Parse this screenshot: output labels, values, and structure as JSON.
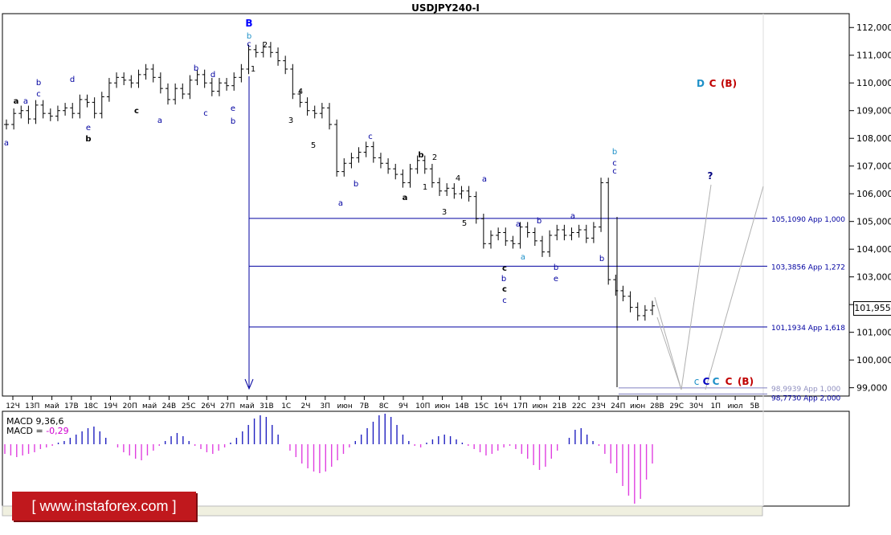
{
  "title": "USDJPY240-I",
  "chart_data": {
    "type": "candlestick",
    "symbol": "USDJPY240-I",
    "y_ticks": [
      "112,000",
      "111,000",
      "110,000",
      "109,000",
      "108,000",
      "107,000",
      "106,000",
      "105,000",
      "104,000",
      "103,000",
      "102,000",
      "101,000",
      "100,000",
      "99,000"
    ],
    "ylim": [
      98.7,
      112.5
    ],
    "x_ticks": [
      "12Ч",
      "13П",
      "май",
      "17В",
      "18С",
      "19Ч",
      "20П",
      "май",
      "24В",
      "25С",
      "26Ч",
      "27П",
      "май",
      "31В",
      "1С",
      "2Ч",
      "3П",
      "июн",
      "7В",
      "8С",
      "9Ч",
      "10П",
      "июн",
      "14В",
      "15С",
      "16Ч",
      "17П",
      "июн",
      "21В",
      "22С",
      "23Ч",
      "24П",
      "июн",
      "28В",
      "29С",
      "30Ч",
      "1П",
      "июл",
      "5В"
    ],
    "current_price": "101,955",
    "levels": [
      {
        "price": 105.109,
        "label": "105,1090 App 1,000"
      },
      {
        "price": 103.3856,
        "label": "103,3856 App 1,272"
      },
      {
        "price": 101.1934,
        "label": "101,1934 App 1,618"
      },
      {
        "price": 98.9939,
        "label": "98,9939 App 1,000"
      },
      {
        "price": 98.773,
        "label": "98,7730 App 2,000"
      }
    ],
    "price_path": [
      108.5,
      108.9,
      109.0,
      108.7,
      109.2,
      108.9,
      108.8,
      109.0,
      109.1,
      108.9,
      109.4,
      109.3,
      108.9,
      109.5,
      110.0,
      110.2,
      110.1,
      110.0,
      110.3,
      110.5,
      110.2,
      109.8,
      109.4,
      109.8,
      109.6,
      110.1,
      110.3,
      110.0,
      109.7,
      110.0,
      109.9,
      110.2,
      110.5,
      111.2,
      111.1,
      111.3,
      111.1,
      110.8,
      110.5,
      109.6,
      109.3,
      109.0,
      108.9,
      109.1,
      108.5,
      106.8,
      107.1,
      107.3,
      107.5,
      107.7,
      107.3,
      107.1,
      106.9,
      106.7,
      106.4,
      106.9,
      107.2,
      106.9,
      106.4,
      106.1,
      106.2,
      106.0,
      106.1,
      105.9,
      105.1,
      104.2,
      104.5,
      104.6,
      104.3,
      104.2,
      104.8,
      104.6,
      104.3,
      103.9,
      104.5,
      104.7,
      104.5,
      104.6,
      104.7,
      104.4,
      104.8,
      106.4,
      102.9,
      102.5,
      102.3,
      101.9,
      101.6,
      101.8,
      101.955
    ],
    "macd_label": "MACD 9,36,6",
    "macd_value_label": "MACD =",
    "macd_value": "-0,29",
    "macd_histogram": [
      -0.3,
      -0.35,
      -0.4,
      -0.35,
      -0.3,
      -0.25,
      -0.15,
      -0.1,
      -0.05,
      0.05,
      0.1,
      0.2,
      0.3,
      0.4,
      0.5,
      0.55,
      0.4,
      0.2,
      0.0,
      -0.1,
      -0.25,
      -0.35,
      -0.45,
      -0.5,
      -0.35,
      -0.2,
      -0.05,
      0.1,
      0.25,
      0.35,
      0.25,
      0.1,
      -0.05,
      -0.15,
      -0.25,
      -0.3,
      -0.2,
      -0.1,
      0.05,
      0.2,
      0.4,
      0.6,
      0.8,
      0.9,
      0.85,
      0.6,
      0.3,
      0.0,
      -0.2,
      -0.4,
      -0.6,
      -0.75,
      -0.85,
      -0.9,
      -0.85,
      -0.7,
      -0.5,
      -0.3,
      -0.1,
      0.1,
      0.3,
      0.5,
      0.7,
      0.9,
      0.95,
      0.85,
      0.6,
      0.3,
      0.1,
      -0.05,
      -0.1,
      0.05,
      0.15,
      0.25,
      0.3,
      0.25,
      0.15,
      0.05,
      -0.05,
      -0.15,
      -0.25,
      -0.35,
      -0.3,
      -0.2,
      -0.1,
      -0.05,
      -0.15,
      -0.3,
      -0.45,
      -0.65,
      -0.8,
      -0.7,
      -0.45,
      -0.2,
      0.0,
      0.2,
      0.45,
      0.5,
      0.3,
      0.1,
      -0.05,
      -0.3,
      -0.6,
      -0.9,
      -1.3,
      -1.6,
      -1.85,
      -1.7,
      -1.1,
      -0.6
    ]
  },
  "wave_labels": {
    "D_label": "D",
    "C_label": "C",
    "B_paren": "(B)",
    "question": "?",
    "target_c": "c",
    "target_C_blue": "C",
    "target_C_teal": "C",
    "target_C_red": "C",
    "target_B_red": "(B)",
    "small": [
      {
        "t": "a",
        "c": "#0000a0"
      },
      {
        "t": "b",
        "c": "#0000a0"
      },
      {
        "t": "c",
        "c": "#0000a0"
      },
      {
        "t": "d",
        "c": "#0000a0"
      },
      {
        "t": "e",
        "c": "#0000a0"
      },
      {
        "t": "b",
        "c": "#000000"
      },
      {
        "t": "a",
        "c": "#000000"
      },
      {
        "t": "c",
        "c": "#000000"
      },
      {
        "t": "a",
        "c": "#0000a0"
      },
      {
        "t": "b",
        "c": "#0000a0"
      },
      {
        "t": "c",
        "c": "#0000a0"
      },
      {
        "t": "d",
        "c": "#0000a0"
      },
      {
        "t": "e",
        "c": "#0000a0"
      },
      {
        "t": "b",
        "c": "#0000a0"
      },
      {
        "t": "B",
        "c": "#0000ff"
      },
      {
        "t": "b",
        "c": "#1e90c8"
      },
      {
        "t": "c",
        "c": "#0000a0"
      },
      {
        "t": "1",
        "c": "#000000"
      },
      {
        "t": "2",
        "c": "#000000"
      },
      {
        "t": "3",
        "c": "#000000"
      },
      {
        "t": "4",
        "c": "#000000"
      },
      {
        "t": "5",
        "c": "#000000"
      },
      {
        "t": "a",
        "c": "#0000a0"
      },
      {
        "t": "b",
        "c": "#0000a0"
      },
      {
        "t": "c",
        "c": "#0000a0"
      },
      {
        "t": "a",
        "c": "#000000"
      },
      {
        "t": "b",
        "c": "#000000"
      },
      {
        "t": "1",
        "c": "#000000"
      },
      {
        "t": "2",
        "c": "#000000"
      },
      {
        "t": "3",
        "c": "#000000"
      },
      {
        "t": "4",
        "c": "#000000"
      },
      {
        "t": "5",
        "c": "#000000"
      },
      {
        "t": "a",
        "c": "#0000a0"
      },
      {
        "t": "b",
        "c": "#0000a0"
      },
      {
        "t": "c",
        "c": "#000000"
      },
      {
        "t": "c",
        "c": "#000000"
      },
      {
        "t": "c",
        "c": "#0000a0"
      },
      {
        "t": "a",
        "c": "#1e90c8"
      },
      {
        "t": "a",
        "c": "#0000a0"
      },
      {
        "t": "b",
        "c": "#0000a0"
      },
      {
        "t": "a",
        "c": "#0000a0"
      },
      {
        "t": "b",
        "c": "#0000a0"
      },
      {
        "t": "b",
        "c": "#1e90c8"
      },
      {
        "t": "c",
        "c": "#0000a0"
      },
      {
        "t": "c",
        "c": "#0000a0"
      },
      {
        "t": "b",
        "c": "#0000a0"
      },
      {
        "t": "e",
        "c": "#0000a0"
      },
      {
        "t": "a",
        "c": "#0000a0"
      }
    ]
  },
  "colors": {
    "level_line": "#0000a0",
    "bull_hist": "#2020c0",
    "bear_hist": "#e040e0",
    "teal": "#1e90c8",
    "red": "#c00000",
    "blue": "#0000ff",
    "projection": "#b0b0b0"
  },
  "watermark": "[ www.instaforex.com ]",
  "footer_strip": "MACD 9,36,6 MACD=-0,29"
}
